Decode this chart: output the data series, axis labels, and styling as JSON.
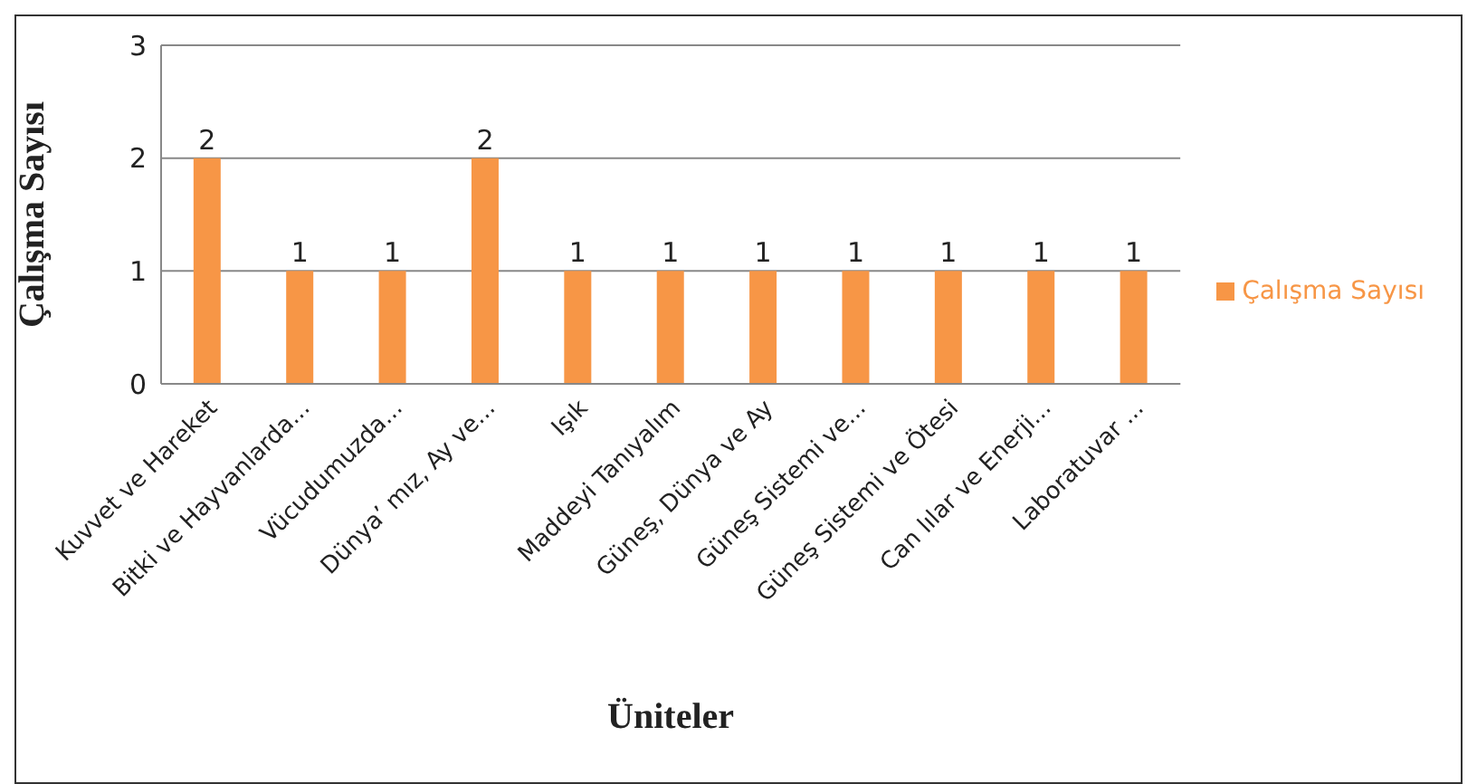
{
  "chart_data": {
    "type": "bar",
    "xlabel": "Üniteler",
    "ylabel": "Çalışma Sayısı",
    "categories": [
      "Kuvvet ve Hareket",
      "Bitki ve Hayvanlarda...",
      "Vücudumuzda...",
      "Dünya’ mız, Ay ve...",
      "Işık",
      "Maddeyi Tanıyalım",
      "Güneş, Dünya ve Ay",
      "Güneş Sistemi ve...",
      "Güneş Sistemi ve Ötesi",
      "Can lılar ve Enerji...",
      "Laboratuvar ..."
    ],
    "series": [
      {
        "name": "Çalışma Sayısı",
        "color": "#f79646",
        "values": [
          2,
          1,
          1,
          2,
          1,
          1,
          1,
          1,
          1,
          1,
          1
        ]
      }
    ],
    "ylim": [
      0,
      3
    ],
    "yticks": [
      0,
      1,
      2,
      3
    ],
    "grid": "y",
    "legend": "right",
    "data_labels": true
  }
}
